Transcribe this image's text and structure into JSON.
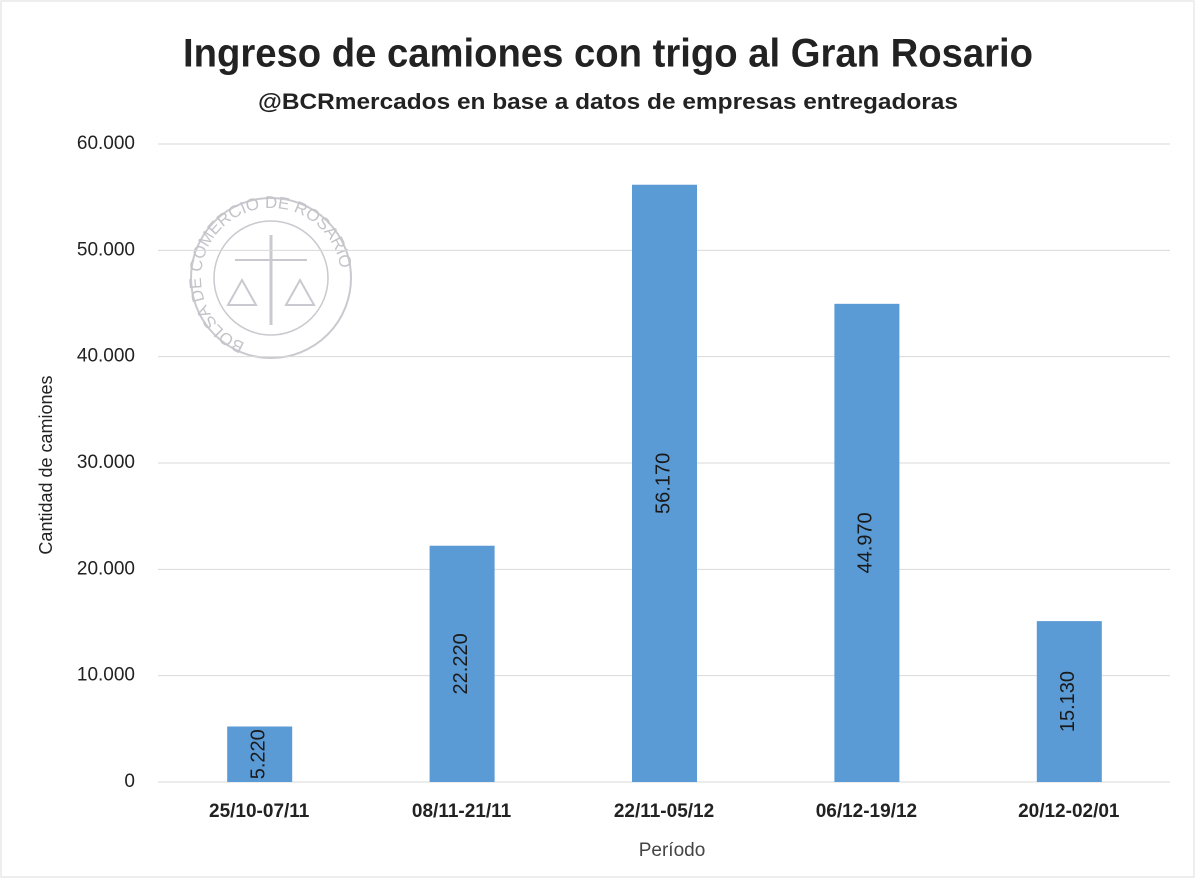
{
  "chart_data": {
    "type": "bar",
    "title": "Ingreso de camiones con trigo al Gran Rosario",
    "subtitle": "@BCRmercados en base a datos de empresas entregadoras",
    "watermark": "BOLSA DE COMERCIO DE ROSARIO",
    "x_label": "Período",
    "y_label": "Cantidad de camiones",
    "categories": [
      "25/10-07/11",
      "08/11-21/11",
      "22/11-05/12",
      "06/12-19/12",
      "20/12-02/01"
    ],
    "values": [
      5220,
      22220,
      56170,
      44970,
      15130
    ],
    "value_labels": [
      "5.220",
      "22.220",
      "56.170",
      "44.970",
      "15.130"
    ],
    "color": "#5b9bd5",
    "ylim": [
      0,
      60000
    ],
    "yticks": [
      0,
      {
        "value": 10000,
        "label": "10.000"
      },
      {
        "value": 20000,
        "label": "20.000"
      },
      {
        "value": 30000,
        "label": "30.000"
      },
      {
        "value": 40000,
        "label": "40.000"
      },
      {
        "value": 50000,
        "label": "50.000"
      },
      {
        "value": 60000,
        "label": "60.000"
      }
    ],
    "grid": true
  }
}
